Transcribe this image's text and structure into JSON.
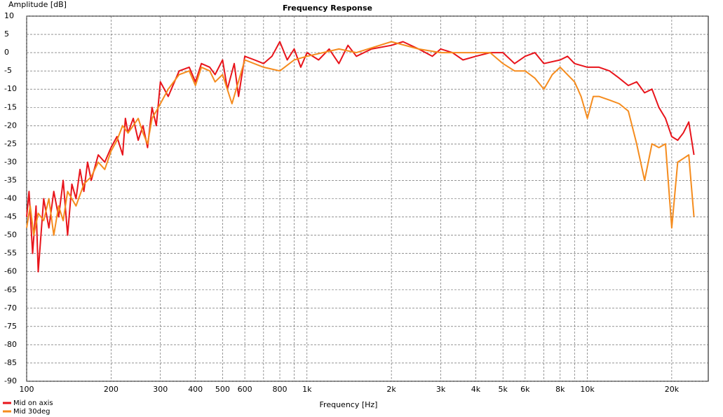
{
  "chart_data": {
    "type": "line",
    "title": "Frequency Response",
    "y_label": "Amplitude [dB]",
    "x_label": "Frequency [Hz]",
    "xscale": "log",
    "xlim": [
      100,
      27000
    ],
    "ylim": [
      -90,
      10
    ],
    "xticks": [
      100,
      200,
      300,
      400,
      500,
      600,
      800,
      {
        "value": 1000,
        "label": "1k"
      },
      {
        "value": 2000,
        "label": "2k"
      },
      {
        "value": 3000,
        "label": "3k"
      },
      {
        "value": 4000,
        "label": "4k"
      },
      {
        "value": 5000,
        "label": "5k"
      },
      {
        "value": 6000,
        "label": "6k"
      },
      {
        "value": 8000,
        "label": "8k"
      },
      {
        "value": 10000,
        "label": "10k"
      },
      {
        "value": 20000,
        "label": "20k"
      }
    ],
    "xminor": [
      700,
      900,
      7000,
      9000
    ],
    "yticks": [
      10,
      5,
      0,
      -5,
      -10,
      -15,
      -20,
      -25,
      -30,
      -35,
      -40,
      -45,
      -50,
      -55,
      -60,
      -65,
      -70,
      -75,
      -80,
      -85,
      -90
    ],
    "grid": true,
    "legend": "bottom-left",
    "series": [
      {
        "name": "Mid on axis",
        "color": "#e8141b",
        "x": [
          100,
          102,
          105,
          108,
          110,
          115,
          120,
          125,
          130,
          135,
          140,
          145,
          150,
          155,
          160,
          165,
          170,
          180,
          190,
          200,
          210,
          220,
          225,
          230,
          240,
          250,
          260,
          270,
          280,
          290,
          300,
          320,
          350,
          380,
          400,
          420,
          450,
          470,
          500,
          520,
          550,
          570,
          600,
          650,
          700,
          750,
          800,
          850,
          900,
          950,
          1000,
          1100,
          1200,
          1300,
          1400,
          1500,
          1700,
          2000,
          2200,
          2500,
          2800,
          3000,
          3300,
          3600,
          4000,
          4500,
          5000,
          5500,
          6000,
          6500,
          7000,
          8000,
          8500,
          9000,
          10000,
          11000,
          12000,
          13000,
          14000,
          15000,
          16000,
          17000,
          18000,
          19000,
          20000,
          21000,
          22000,
          23000,
          24000
        ],
        "values": [
          -45,
          -38,
          -55,
          -42,
          -60,
          -40,
          -48,
          -38,
          -45,
          -35,
          -50,
          -36,
          -40,
          -32,
          -38,
          -30,
          -35,
          -28,
          -30,
          -26,
          -23,
          -28,
          -18,
          -22,
          -18,
          -24,
          -20,
          -26,
          -15,
          -20,
          -8,
          -12,
          -5,
          -4,
          -8,
          -3,
          -4,
          -6,
          -2,
          -10,
          -3,
          -12,
          -1,
          -2,
          -3,
          -1,
          3,
          -2,
          1,
          -4,
          0,
          -2,
          1,
          -3,
          2,
          -1,
          1,
          2,
          3,
          1,
          -1,
          1,
          0,
          -2,
          -1,
          0,
          0,
          -3,
          -1,
          0,
          -3,
          -2,
          -1,
          -3,
          -4,
          -4,
          -5,
          -7,
          -9,
          -8,
          -11,
          -10,
          -15,
          -18,
          -23,
          -24,
          -22,
          -19,
          -28
        ]
      },
      {
        "name": "Mid 30deg",
        "color": "#f58c1e",
        "x": [
          100,
          103,
          106,
          110,
          115,
          120,
          125,
          130,
          135,
          140,
          150,
          160,
          170,
          180,
          190,
          200,
          210,
          220,
          230,
          240,
          250,
          260,
          270,
          280,
          290,
          300,
          320,
          350,
          380,
          400,
          420,
          450,
          470,
          500,
          540,
          600,
          700,
          800,
          900,
          1000,
          1300,
          1500,
          2000,
          2500,
          3000,
          3500,
          4000,
          4500,
          5000,
          5500,
          6000,
          6500,
          7000,
          7500,
          8000,
          9000,
          9500,
          10000,
          10500,
          11000,
          12000,
          13000,
          14000,
          15000,
          16000,
          17000,
          18000,
          19000,
          20000,
          21000,
          22000,
          23000,
          24000
        ],
        "values": [
          -48,
          -42,
          -50,
          -44,
          -46,
          -40,
          -50,
          -42,
          -46,
          -38,
          -42,
          -36,
          -34,
          -30,
          -32,
          -27,
          -24,
          -20,
          -22,
          -20,
          -18,
          -22,
          -25,
          -18,
          -16,
          -14,
          -10,
          -6,
          -5,
          -9,
          -4,
          -5,
          -8,
          -6,
          -14,
          -2,
          -4,
          -5,
          -2,
          -1,
          1,
          0,
          3,
          1,
          0,
          0,
          0,
          0,
          -3,
          -5,
          -5,
          -7,
          -10,
          -6,
          -4,
          -8,
          -12,
          -18,
          -12,
          -12,
          -13,
          -14,
          -16,
          -25,
          -35,
          -25,
          -26,
          -25,
          -48,
          -30,
          -29,
          -28,
          -45
        ]
      }
    ]
  }
}
